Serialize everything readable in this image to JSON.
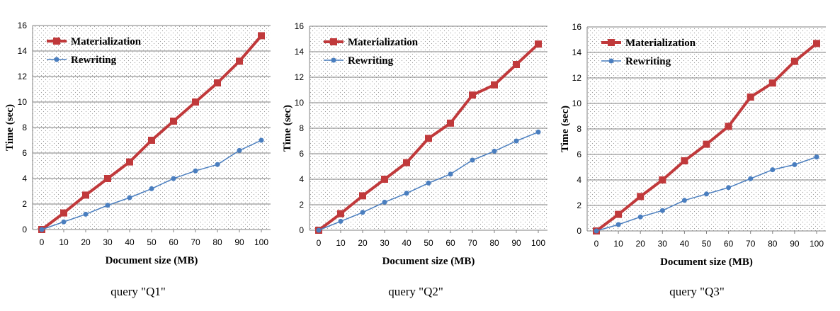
{
  "colors": {
    "materialization": "#c0393b",
    "rewriting": "#4a7ebf",
    "grid": "#7f7f7f",
    "dots": "#9a9a9a"
  },
  "chart_data": [
    {
      "type": "line",
      "title": "",
      "caption": "query \"Q1\"",
      "xlabel": "Document size (MB)",
      "ylabel": "Time (sec)",
      "x": [
        0,
        10,
        20,
        30,
        40,
        50,
        60,
        70,
        80,
        90,
        100
      ],
      "ylim": [
        0,
        16
      ],
      "yticks": [
        0,
        2,
        4,
        6,
        8,
        10,
        12,
        14,
        16
      ],
      "legend": "top-left",
      "series": [
        {
          "name": "Materialization",
          "values": [
            0,
            1.3,
            2.7,
            4.0,
            5.3,
            7.0,
            8.5,
            10.0,
            11.5,
            13.2,
            15.2
          ]
        },
        {
          "name": "Rewriting",
          "values": [
            0,
            0.6,
            1.2,
            1.9,
            2.5,
            3.2,
            4.0,
            4.6,
            5.1,
            6.2,
            7.0
          ]
        }
      ]
    },
    {
      "type": "line",
      "title": "",
      "caption": "query \"Q2\"",
      "xlabel": "Document size (MB)",
      "ylabel": "Time (sec)",
      "x": [
        0,
        10,
        20,
        30,
        40,
        50,
        60,
        70,
        80,
        90,
        100
      ],
      "ylim": [
        0,
        16
      ],
      "yticks": [
        0,
        2,
        4,
        6,
        8,
        10,
        12,
        14,
        16
      ],
      "legend": "top-left",
      "series": [
        {
          "name": "Materialization",
          "values": [
            0,
            1.3,
            2.7,
            4.0,
            5.3,
            7.2,
            8.4,
            10.6,
            11.4,
            13.0,
            14.6
          ]
        },
        {
          "name": "Rewriting",
          "values": [
            0,
            0.7,
            1.4,
            2.2,
            2.9,
            3.7,
            4.4,
            5.5,
            6.2,
            7.0,
            7.7
          ]
        }
      ]
    },
    {
      "type": "line",
      "title": "",
      "caption": "query \"Q3\"",
      "xlabel": "Document size (MB)",
      "ylabel": "Time (sec)",
      "x": [
        0,
        10,
        20,
        30,
        40,
        50,
        60,
        70,
        80,
        90,
        100
      ],
      "ylim": [
        0,
        16
      ],
      "yticks": [
        0,
        2,
        4,
        6,
        8,
        10,
        12,
        14,
        16
      ],
      "legend": "top-left",
      "series": [
        {
          "name": "Materialization",
          "values": [
            0,
            1.3,
            2.7,
            4.0,
            5.5,
            6.8,
            8.2,
            10.5,
            11.6,
            13.3,
            14.7
          ]
        },
        {
          "name": "Rewriting",
          "values": [
            0,
            0.5,
            1.1,
            1.6,
            2.4,
            2.9,
            3.4,
            4.1,
            4.8,
            5.2,
            5.8
          ]
        }
      ]
    }
  ]
}
